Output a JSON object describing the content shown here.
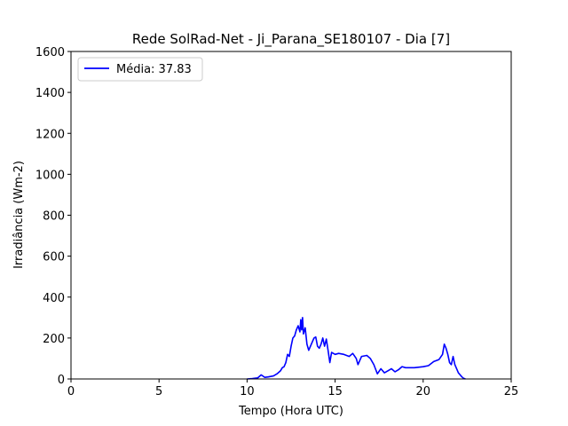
{
  "chart_data": {
    "type": "line",
    "title": "Rede SolRad-Net - Ji_Parana_SE180107 - Dia [7]",
    "xlabel": "Tempo (Hora UTC)",
    "ylabel": "Irradiância (Wm-2)",
    "xlim": [
      0,
      25
    ],
    "ylim": [
      0,
      1600
    ],
    "xticks": [
      0,
      5,
      10,
      15,
      20,
      25
    ],
    "yticks": [
      0,
      200,
      400,
      600,
      800,
      1000,
      1200,
      1400,
      1600
    ],
    "grid": false,
    "legend_position": "top-left",
    "series": [
      {
        "name": "Média: 37.83",
        "color": "#0000ff",
        "x": [
          10.0,
          10.3,
          10.6,
          10.8,
          11.0,
          11.2,
          11.5,
          11.7,
          11.9,
          12.0,
          12.1,
          12.2,
          12.3,
          12.4,
          12.5,
          12.6,
          12.7,
          12.8,
          12.9,
          13.0,
          13.05,
          13.1,
          13.15,
          13.2,
          13.3,
          13.4,
          13.5,
          13.6,
          13.7,
          13.8,
          13.9,
          14.0,
          14.1,
          14.2,
          14.3,
          14.4,
          14.5,
          14.6,
          14.7,
          14.8,
          14.9,
          15.0,
          15.2,
          15.5,
          15.8,
          16.0,
          16.2,
          16.3,
          16.5,
          16.8,
          17.0,
          17.2,
          17.4,
          17.6,
          17.8,
          18.0,
          18.2,
          18.4,
          18.6,
          18.8,
          19.0,
          19.5,
          20.0,
          20.3,
          20.6,
          20.9,
          21.1,
          21.2,
          21.3,
          21.4,
          21.5,
          21.6,
          21.7,
          21.8,
          21.9,
          22.0,
          22.1,
          22.2,
          22.3,
          22.4
        ],
        "y": [
          0,
          2,
          5,
          20,
          8,
          10,
          15,
          25,
          40,
          55,
          60,
          80,
          120,
          110,
          160,
          200,
          210,
          240,
          260,
          230,
          290,
          240,
          300,
          220,
          250,
          170,
          140,
          160,
          180,
          200,
          205,
          160,
          150,
          170,
          200,
          160,
          195,
          140,
          80,
          130,
          125,
          120,
          125,
          120,
          110,
          125,
          100,
          70,
          110,
          115,
          100,
          70,
          25,
          50,
          30,
          40,
          50,
          35,
          45,
          60,
          55,
          55,
          60,
          65,
          85,
          95,
          120,
          170,
          150,
          120,
          80,
          70,
          110,
          70,
          50,
          30,
          20,
          10,
          3,
          0
        ]
      }
    ]
  }
}
